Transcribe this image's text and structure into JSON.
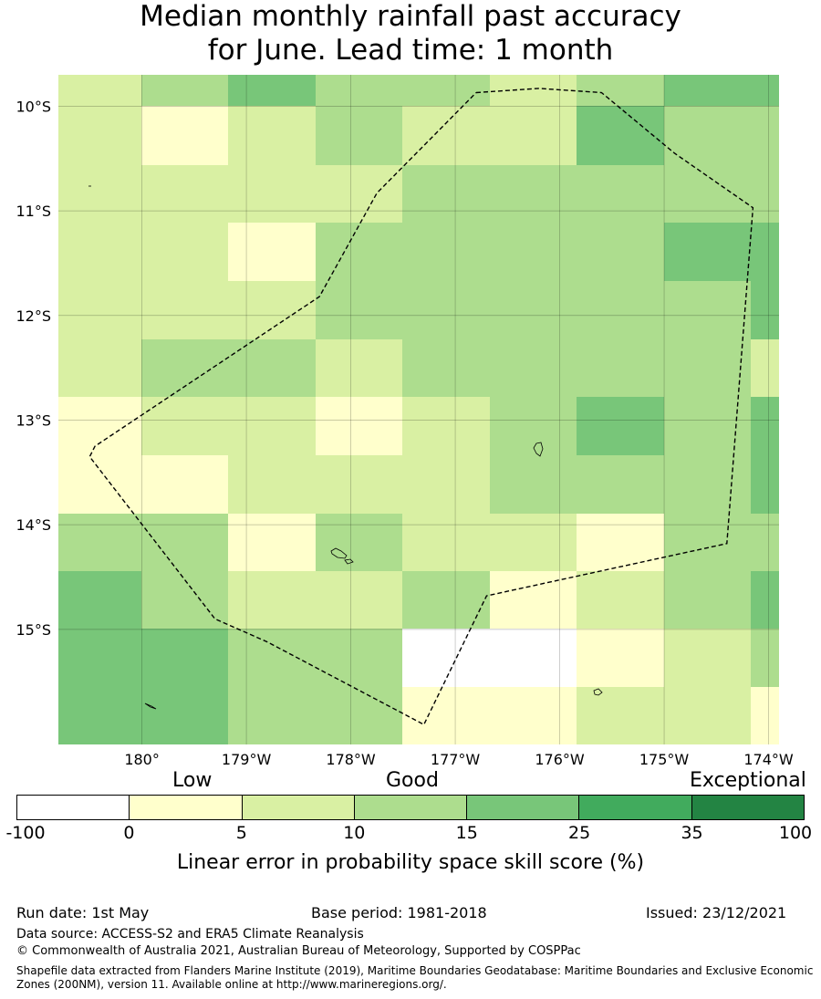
{
  "title": {
    "line1": "Median monthly rainfall past accuracy",
    "line2": "for June. Lead time: 1 month"
  },
  "map": {
    "lon_range": [
      -180.8,
      -173.9
    ],
    "lat_range": [
      -16.1,
      -9.7
    ],
    "lat_ticks": [
      {
        "value": -10,
        "label": "10°S"
      },
      {
        "value": -11,
        "label": "11°S"
      },
      {
        "value": -12,
        "label": "12°S"
      },
      {
        "value": -13,
        "label": "13°S"
      },
      {
        "value": -14,
        "label": "14°S"
      },
      {
        "value": -15,
        "label": "15°S"
      }
    ],
    "lon_ticks": [
      {
        "value": -180,
        "label": "180°"
      },
      {
        "value": -179,
        "label": "179°W"
      },
      {
        "value": -178,
        "label": "178°W"
      },
      {
        "value": -177,
        "label": "177°W"
      },
      {
        "value": -176,
        "label": "176°W"
      },
      {
        "value": -175,
        "label": "175°W"
      },
      {
        "value": -174,
        "label": "174°W"
      }
    ],
    "grid_lines": true,
    "colors": [
      "#ffffff",
      "#ffffcc",
      "#d9f0a3",
      "#addd8e",
      "#78c679",
      "#41ab5d",
      "#238443"
    ],
    "cell_rows": [
      [
        2,
        3,
        4,
        3,
        3,
        2,
        3,
        4,
        4
      ],
      [
        2,
        1,
        2,
        3,
        2,
        2,
        4,
        3,
        3
      ],
      [
        2,
        2,
        2,
        2,
        3,
        3,
        3,
        3,
        3
      ],
      [
        2,
        2,
        1,
        3,
        3,
        3,
        3,
        4,
        4
      ],
      [
        2,
        2,
        2,
        3,
        3,
        3,
        3,
        3,
        4
      ],
      [
        2,
        3,
        3,
        2,
        3,
        3,
        3,
        3,
        2
      ],
      [
        1,
        2,
        2,
        1,
        2,
        3,
        4,
        3,
        4
      ],
      [
        1,
        1,
        2,
        2,
        2,
        3,
        3,
        3,
        4
      ],
      [
        3,
        3,
        1,
        3,
        2,
        2,
        1,
        3,
        3
      ],
      [
        4,
        3,
        2,
        2,
        3,
        1,
        2,
        3,
        4
      ],
      [
        4,
        4,
        3,
        3,
        0,
        0,
        1,
        2,
        3
      ],
      [
        4,
        4,
        3,
        3,
        1,
        1,
        2,
        2,
        1
      ]
    ],
    "eez_boundary": [
      [
        -176.8,
        -9.87
      ],
      [
        -176.2,
        -9.83
      ],
      [
        -175.6,
        -9.87
      ],
      [
        -174.9,
        -10.45
      ],
      [
        -174.15,
        -10.97
      ],
      [
        -174.4,
        -14.18
      ],
      [
        -176.7,
        -14.68
      ],
      [
        -177.3,
        -15.91
      ],
      [
        -178.8,
        -15.12
      ],
      [
        -179.3,
        -14.9
      ],
      [
        -180.5,
        -13.35
      ],
      [
        -180.45,
        -13.25
      ],
      [
        -178.3,
        -11.82
      ],
      [
        -177.75,
        -10.83
      ],
      [
        -176.8,
        -9.87
      ]
    ]
  },
  "legend": {
    "categories": [
      "Low",
      "Good",
      "Exceptional"
    ],
    "colors": [
      "#ffffff",
      "#ffffcc",
      "#d9f0a3",
      "#addd8e",
      "#78c679",
      "#41ab5d",
      "#238443"
    ],
    "ticks": [
      "-100",
      "0",
      "5",
      "10",
      "15",
      "25",
      "35",
      "100"
    ],
    "title": "Linear error in probability space skill score (%)"
  },
  "footer": {
    "run_date": "Run date: 1st May",
    "base_period": "Base period: 1981-2018",
    "issued": "Issued: 23/12/2021",
    "data_source": "Data source: ACCESS-S2 and ERA5 Climate Reanalysis",
    "copyright": "© Commonwealth of Australia 2021, Australian Bureau of Meteorology, Supported by COSPPac",
    "shapefile": "Shapefile data extracted from Flanders Marine Institute (2019), Maritime Boundaries Geodatabase: Maritime Boundaries and Exclusive Economic Zones (200NM), version 11. Available online at http://www.marineregions.org/."
  }
}
